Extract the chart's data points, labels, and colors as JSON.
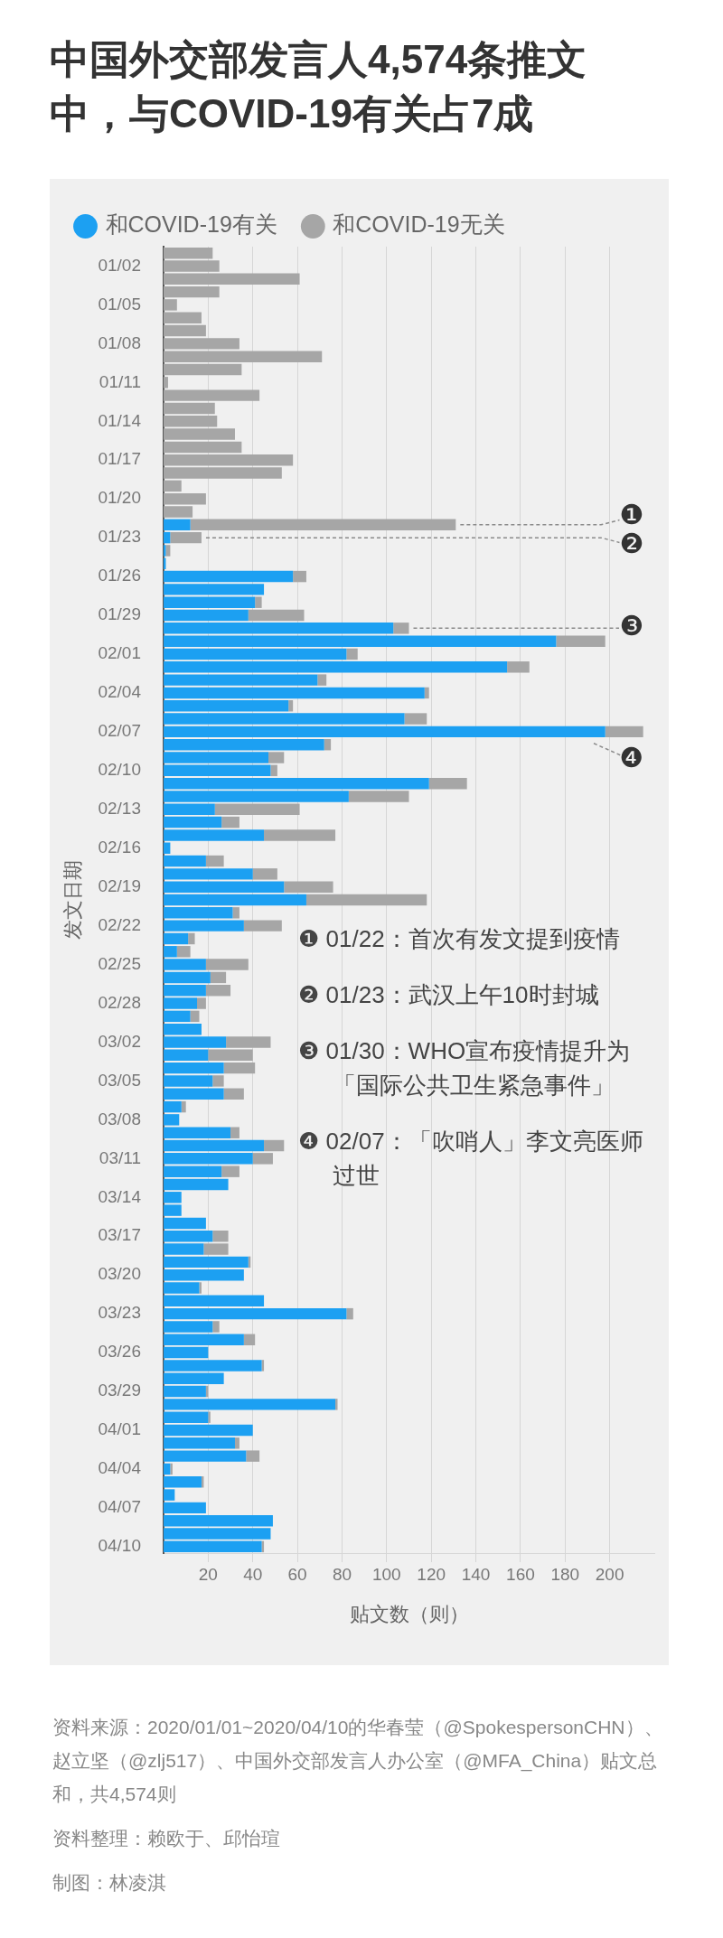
{
  "chart_data": {
    "type": "bar",
    "orientation": "horizontal",
    "stacked": true,
    "title": "中国外交部发言人4,574条推文中，与COVID-19有关占7成",
    "xlabel": "贴文数（则）",
    "ylabel": "发文日期",
    "x": [
      "2020-01-01",
      "2020-01-02",
      "2020-01-03",
      "2020-01-04",
      "2020-01-05",
      "2020-01-06",
      "2020-01-07",
      "2020-01-08",
      "2020-01-09",
      "2020-01-10",
      "2020-01-11",
      "2020-01-12",
      "2020-01-13",
      "2020-01-14",
      "2020-01-15",
      "2020-01-16",
      "2020-01-17",
      "2020-01-18",
      "2020-01-19",
      "2020-01-20",
      "2020-01-21",
      "2020-01-22",
      "2020-01-23",
      "2020-01-24",
      "2020-01-25",
      "2020-01-26",
      "2020-01-27",
      "2020-01-28",
      "2020-01-29",
      "2020-01-30",
      "2020-01-31",
      "2020-02-01",
      "2020-02-02",
      "2020-02-03",
      "2020-02-04",
      "2020-02-05",
      "2020-02-06",
      "2020-02-07",
      "2020-02-08",
      "2020-02-09",
      "2020-02-10",
      "2020-02-11",
      "2020-02-12",
      "2020-02-13",
      "2020-02-14",
      "2020-02-15",
      "2020-02-16",
      "2020-02-17",
      "2020-02-18",
      "2020-02-19",
      "2020-02-20",
      "2020-02-21",
      "2020-02-22",
      "2020-02-23",
      "2020-02-24",
      "2020-02-25",
      "2020-02-26",
      "2020-02-27",
      "2020-02-28",
      "2020-02-29",
      "2020-03-01",
      "2020-03-02",
      "2020-03-03",
      "2020-03-04",
      "2020-03-05",
      "2020-03-06",
      "2020-03-07",
      "2020-03-08",
      "2020-03-09",
      "2020-03-10",
      "2020-03-11",
      "2020-03-12",
      "2020-03-13",
      "2020-03-14",
      "2020-03-15",
      "2020-03-16",
      "2020-03-17",
      "2020-03-18",
      "2020-03-19",
      "2020-03-20",
      "2020-03-21",
      "2020-03-22",
      "2020-03-23",
      "2020-03-24",
      "2020-03-25",
      "2020-03-26",
      "2020-03-27",
      "2020-03-28",
      "2020-03-29",
      "2020-03-30",
      "2020-03-31",
      "2020-04-01",
      "2020-04-02",
      "2020-04-03",
      "2020-04-04",
      "2020-04-05",
      "2020-04-06",
      "2020-04-07",
      "2020-04-08",
      "2020-04-09",
      "2020-04-10"
    ],
    "series": [
      {
        "name": "和COVID-19有关",
        "color": "#1ca0f2",
        "values": [
          0,
          0,
          0,
          0,
          0,
          0,
          0,
          0,
          0,
          0,
          0,
          0,
          0,
          0,
          0,
          0,
          0,
          0,
          0,
          0,
          0,
          12,
          3,
          1,
          1,
          58,
          45,
          41,
          38,
          103,
          176,
          82,
          154,
          69,
          117,
          56,
          108,
          198,
          72,
          47,
          48,
          119,
          83,
          23,
          26,
          45,
          3,
          19,
          40,
          54,
          64,
          31,
          36,
          11,
          6,
          19,
          21,
          19,
          15,
          12,
          17,
          28,
          20,
          27,
          22,
          27,
          8,
          7,
          30,
          45,
          40,
          26,
          29,
          8,
          8,
          19,
          22,
          18,
          38,
          36,
          16,
          45,
          82,
          22,
          36,
          20,
          44,
          27,
          19,
          77,
          20,
          40,
          32,
          37,
          3,
          17,
          5,
          19,
          49,
          48,
          44
        ]
      },
      {
        "name": "和COVID-19无关",
        "color": "#a6a6a6",
        "values": [
          22,
          25,
          61,
          25,
          6,
          17,
          19,
          34,
          71,
          35,
          2,
          43,
          23,
          24,
          32,
          35,
          58,
          53,
          8,
          19,
          13,
          119,
          14,
          2,
          0,
          6,
          0,
          3,
          25,
          7,
          22,
          5,
          10,
          4,
          2,
          2,
          10,
          17,
          3,
          7,
          3,
          17,
          27,
          38,
          8,
          32,
          0,
          8,
          11,
          22,
          54,
          3,
          17,
          3,
          6,
          19,
          7,
          11,
          4,
          4,
          0,
          20,
          20,
          14,
          5,
          9,
          2,
          0,
          4,
          9,
          9,
          8,
          0,
          0,
          0,
          0,
          7,
          11,
          1,
          0,
          1,
          0,
          3,
          3,
          5,
          0,
          1,
          0,
          1,
          1,
          1,
          0,
          2,
          6,
          1,
          1,
          0,
          0,
          0,
          0,
          1
        ]
      }
    ],
    "xlim": [
      0,
      220
    ],
    "xticks": [
      20,
      40,
      60,
      80,
      100,
      120,
      140,
      160,
      180,
      200
    ],
    "ylim": [
      "2020-04-10T12:00",
      "2019-12-31T12:00"
    ],
    "yticks": [
      {
        "value": "2020-01-02",
        "label": "01/02"
      },
      {
        "value": "2020-01-05",
        "label": "01/05"
      },
      {
        "value": "2020-01-08",
        "label": "01/08"
      },
      {
        "value": "2020-01-11",
        "label": "01/11"
      },
      {
        "value": "2020-01-14",
        "label": "01/14"
      },
      {
        "value": "2020-01-17",
        "label": "01/17"
      },
      {
        "value": "2020-01-20",
        "label": "01/20"
      },
      {
        "value": "2020-01-23",
        "label": "01/23"
      },
      {
        "value": "2020-01-26",
        "label": "01/26"
      },
      {
        "value": "2020-01-29",
        "label": "01/29"
      },
      {
        "value": "2020-02-01",
        "label": "02/01"
      },
      {
        "value": "2020-02-04",
        "label": "02/04"
      },
      {
        "value": "2020-02-07",
        "label": "02/07"
      },
      {
        "value": "2020-02-10",
        "label": "02/10"
      },
      {
        "value": "2020-02-13",
        "label": "02/13"
      },
      {
        "value": "2020-02-16",
        "label": "02/16"
      },
      {
        "value": "2020-02-19",
        "label": "02/19"
      },
      {
        "value": "2020-02-22",
        "label": "02/22"
      },
      {
        "value": "2020-02-25",
        "label": "02/25"
      },
      {
        "value": "2020-02-28",
        "label": "02/28"
      },
      {
        "value": "2020-03-02",
        "label": "03/02"
      },
      {
        "value": "2020-03-05",
        "label": "03/05"
      },
      {
        "value": "2020-03-08",
        "label": "03/08"
      },
      {
        "value": "2020-03-11",
        "label": "03/11"
      },
      {
        "value": "2020-03-14",
        "label": "03/14"
      },
      {
        "value": "2020-03-17",
        "label": "03/17"
      },
      {
        "value": "2020-03-20",
        "label": "03/20"
      },
      {
        "value": "2020-03-23",
        "label": "03/23"
      },
      {
        "value": "2020-03-26",
        "label": "03/26"
      },
      {
        "value": "2020-03-29",
        "label": "03/29"
      },
      {
        "value": "2020-04-01",
        "label": "04/01"
      },
      {
        "value": "2020-04-04",
        "label": "04/04"
      },
      {
        "value": "2020-04-07",
        "label": "04/07"
      },
      {
        "value": "2020-04-10",
        "label": "04/10"
      }
    ],
    "grid": "x",
    "legend": "top left",
    "annotations": [
      {
        "text": "❶",
        "x": 131,
        "y": "2020-01-22"
      },
      {
        "text": "❷",
        "x": 17,
        "y": "2020-01-23"
      },
      {
        "text": "❸",
        "x": 110,
        "y": "2020-01-30"
      },
      {
        "text": "❹",
        "x": 215,
        "y": "2020-02-07"
      },
      "❶ 01/22：首次有发文提到疫情",
      "❷ 01/23：武汉上午10时封城",
      "❸ 01/30：WHO宣布疫情提升为「国际公共卫生紧急事件」",
      "❹ 02/07：「吹哨人」李文亮医师过世",
      "资料来源：2020/01/01~2020/04/10的华春莹（@SpokespersonCHN）、赵立坚（@zlj517）、中国外交部发言人办公室（@MFA_China）贴文总和，共4,574则",
      "资料整理：赖欧于、邱怡瑄",
      "制图：林凌淇"
    ]
  }
}
